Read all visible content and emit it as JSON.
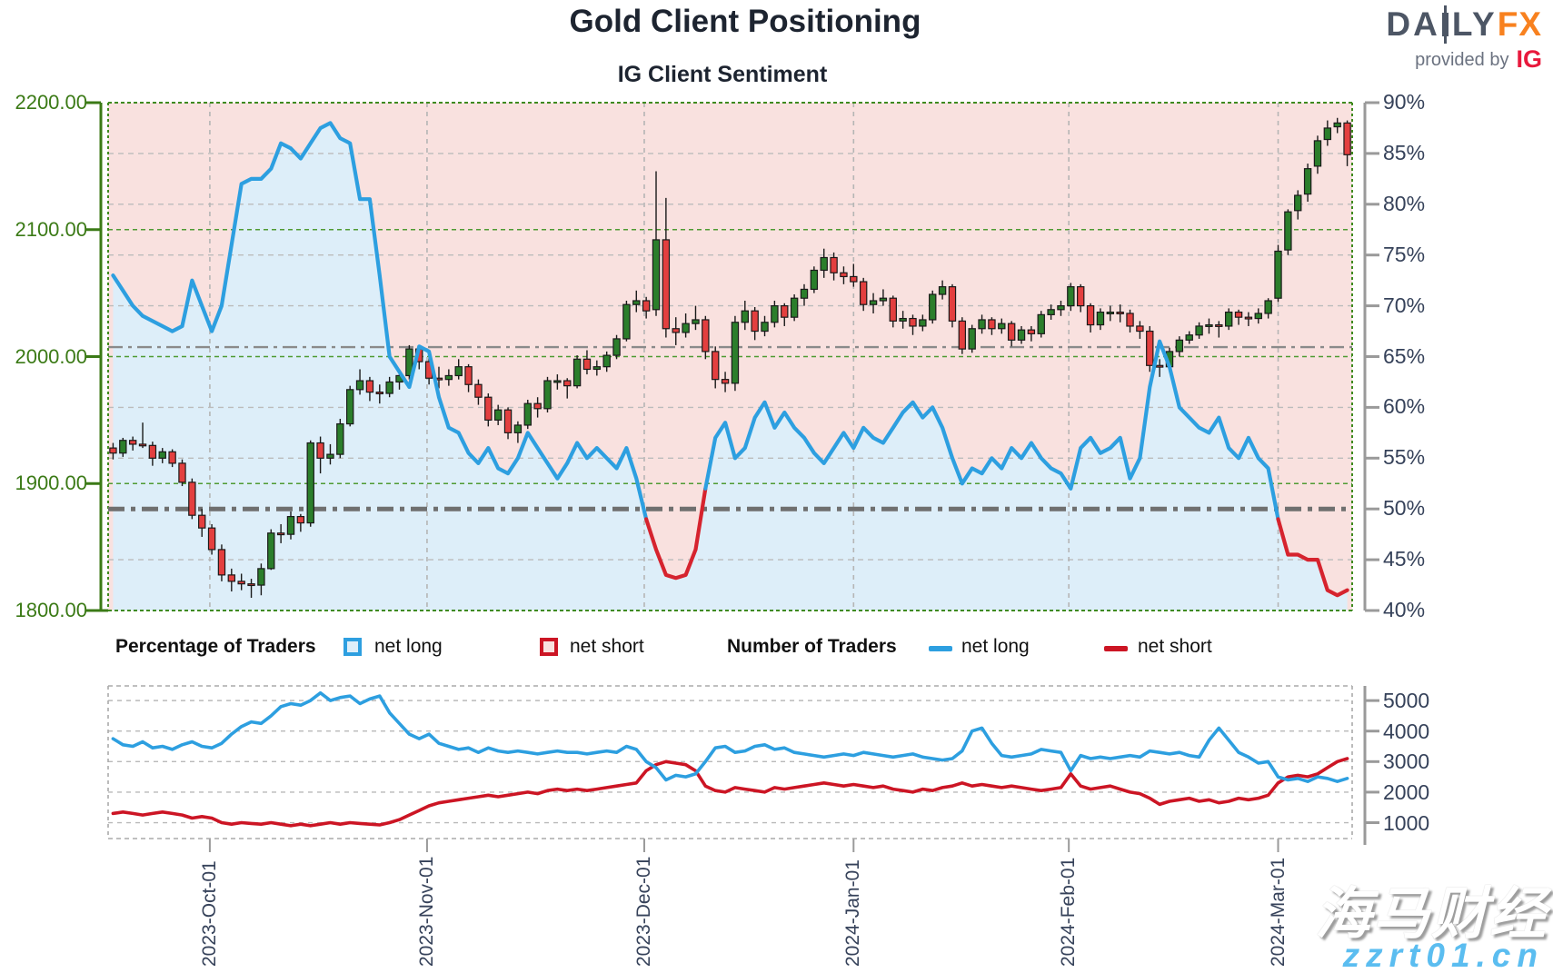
{
  "header": {
    "title": "Gold Client Positioning",
    "subtitle": "IG Client Sentiment",
    "logo": {
      "part1": "DA",
      "part2": "LY",
      "part3": "FX",
      "provided_by": "provided by",
      "ig": "IG"
    }
  },
  "legend": {
    "percentage_title": "Percentage of Traders",
    "pct_net_long": "net long",
    "pct_net_short": "net short",
    "number_title": "Number of Traders",
    "num_net_long": "net long",
    "num_net_short": "net short"
  },
  "watermark": {
    "cjk": "海马财经",
    "url": "zzrt01.cn"
  },
  "chart_data": {
    "type": "candlestick+line",
    "title": "Gold Client Positioning",
    "subtitle": "IG Client Sentiment",
    "price_axis": {
      "min": 1800,
      "max": 2200,
      "ticks": [
        "2200.00",
        "2100.00",
        "2000.00",
        "1900.00",
        "1800.00"
      ],
      "tick_values": [
        2200,
        2100,
        2000,
        1900,
        1800
      ],
      "gridlines": [
        2100,
        2000,
        1900
      ]
    },
    "pct_axis": {
      "min": 40,
      "max": 90,
      "ticks": [
        "90%",
        "85%",
        "80%",
        "75%",
        "70%",
        "65%",
        "60%",
        "55%",
        "50%",
        "45%",
        "40%"
      ],
      "tick_values": [
        90,
        85,
        80,
        75,
        70,
        65,
        60,
        55,
        50,
        45,
        40
      ],
      "gridlines": [
        85,
        80,
        75,
        70,
        60,
        55,
        45
      ]
    },
    "count_axis": {
      "min": 480,
      "max": 5480,
      "ticks": [
        "5000",
        "4000",
        "3000",
        "2000",
        "1000"
      ],
      "tick_values": [
        5000,
        4000,
        3000,
        2000,
        1000
      ]
    },
    "x_axis": {
      "labels": [
        "2023-Oct-01",
        "2023-Nov-01",
        "2023-Dec-01",
        "2024-Jan-01",
        "2024-Feb-01",
        "2024-Mar-01"
      ],
      "index_positions": [
        9.8,
        31.8,
        53.8,
        75.0,
        96.8,
        118.0
      ]
    },
    "markers": {
      "sentiment_mid_pct": 50,
      "price_level": 2007.5
    },
    "candles": [
      [
        1928,
        1932,
        1919,
        1924
      ],
      [
        1924,
        1936,
        1921,
        1934
      ],
      [
        1934,
        1937,
        1926,
        1931
      ],
      [
        1931,
        1948,
        1928,
        1930
      ],
      [
        1930,
        1933,
        1914,
        1920
      ],
      [
        1920,
        1928,
        1916,
        1925
      ],
      [
        1925,
        1927,
        1913,
        1916
      ],
      [
        1916,
        1919,
        1898,
        1901
      ],
      [
        1901,
        1904,
        1872,
        1875
      ],
      [
        1875,
        1880,
        1858,
        1865
      ],
      [
        1865,
        1868,
        1844,
        1848
      ],
      [
        1848,
        1852,
        1823,
        1828
      ],
      [
        1828,
        1833,
        1815,
        1823
      ],
      [
        1823,
        1829,
        1816,
        1821
      ],
      [
        1821,
        1825,
        1810,
        1820
      ],
      [
        1820,
        1837,
        1812,
        1833
      ],
      [
        1833,
        1864,
        1832,
        1861
      ],
      [
        1861,
        1868,
        1853,
        1860
      ],
      [
        1860,
        1878,
        1856,
        1874
      ],
      [
        1874,
        1876,
        1862,
        1869
      ],
      [
        1869,
        1934,
        1866,
        1932
      ],
      [
        1932,
        1937,
        1908,
        1920
      ],
      [
        1920,
        1931,
        1915,
        1923
      ],
      [
        1923,
        1951,
        1920,
        1947
      ],
      [
        1947,
        1977,
        1945,
        1974
      ],
      [
        1974,
        1990,
        1970,
        1981
      ],
      [
        1981,
        1984,
        1965,
        1972
      ],
      [
        1972,
        1978,
        1963,
        1971
      ],
      [
        1971,
        1984,
        1968,
        1980
      ],
      [
        1980,
        1990,
        1974,
        1985
      ],
      [
        1985,
        2009,
        1982,
        2006
      ],
      [
        2006,
        2008,
        1990,
        1996
      ],
      [
        1996,
        1999,
        1978,
        1983
      ],
      [
        1983,
        1992,
        1975,
        1982
      ],
      [
        1982,
        1990,
        1977,
        1985
      ],
      [
        1985,
        1998,
        1982,
        1992
      ],
      [
        1992,
        1994,
        1972,
        1978
      ],
      [
        1978,
        1982,
        1962,
        1968
      ],
      [
        1968,
        1971,
        1945,
        1950
      ],
      [
        1950,
        1962,
        1946,
        1958
      ],
      [
        1958,
        1960,
        1935,
        1940
      ],
      [
        1940,
        1949,
        1932,
        1946
      ],
      [
        1946,
        1966,
        1943,
        1963
      ],
      [
        1963,
        1968,
        1952,
        1959
      ],
      [
        1959,
        1984,
        1956,
        1981
      ],
      [
        1981,
        1986,
        1974,
        1981
      ],
      [
        1981,
        1983,
        1967,
        1977
      ],
      [
        1977,
        2001,
        1975,
        1998
      ],
      [
        1998,
        2005,
        1986,
        1990
      ],
      [
        1990,
        1997,
        1985,
        1992
      ],
      [
        1992,
        2004,
        1988,
        2001
      ],
      [
        2001,
        2017,
        1998,
        2014
      ],
      [
        2014,
        2044,
        2012,
        2041
      ],
      [
        2041,
        2052,
        2035,
        2044
      ],
      [
        2044,
        2047,
        2030,
        2036
      ],
      [
        2037,
        2146,
        2032,
        2092
      ],
      [
        2092,
        2125,
        2015,
        2022
      ],
      [
        2022,
        2031,
        2009,
        2019
      ],
      [
        2019,
        2034,
        2015,
        2026
      ],
      [
        2026,
        2040,
        2021,
        2029
      ],
      [
        2029,
        2032,
        1998,
        2004
      ],
      [
        2004,
        2008,
        1975,
        1982
      ],
      [
        1982,
        1988,
        1972,
        1979
      ],
      [
        1979,
        2032,
        1973,
        2027
      ],
      [
        2027,
        2044,
        2021,
        2036
      ],
      [
        2036,
        2039,
        2013,
        2020
      ],
      [
        2020,
        2032,
        2016,
        2027
      ],
      [
        2027,
        2044,
        2023,
        2040
      ],
      [
        2040,
        2042,
        2024,
        2031
      ],
      [
        2031,
        2049,
        2028,
        2046
      ],
      [
        2046,
        2057,
        2040,
        2053
      ],
      [
        2053,
        2071,
        2050,
        2068
      ],
      [
        2068,
        2085,
        2062,
        2078
      ],
      [
        2078,
        2082,
        2060,
        2066
      ],
      [
        2066,
        2071,
        2057,
        2063
      ],
      [
        2063,
        2073,
        2055,
        2059
      ],
      [
        2059,
        2062,
        2036,
        2041
      ],
      [
        2041,
        2050,
        2034,
        2044
      ],
      [
        2044,
        2053,
        2040,
        2046
      ],
      [
        2046,
        2048,
        2023,
        2028
      ],
      [
        2028,
        2036,
        2022,
        2030
      ],
      [
        2030,
        2033,
        2017,
        2024
      ],
      [
        2024,
        2033,
        2020,
        2029
      ],
      [
        2029,
        2052,
        2026,
        2049
      ],
      [
        2049,
        2060,
        2045,
        2055
      ],
      [
        2055,
        2057,
        2023,
        2028
      ],
      [
        2028,
        2031,
        2002,
        2006
      ],
      [
        2006,
        2025,
        2003,
        2022
      ],
      [
        2022,
        2033,
        2018,
        2029
      ],
      [
        2029,
        2031,
        2017,
        2022
      ],
      [
        2022,
        2030,
        2018,
        2026
      ],
      [
        2026,
        2028,
        2008,
        2013
      ],
      [
        2013,
        2024,
        2010,
        2021
      ],
      [
        2021,
        2024,
        2012,
        2018
      ],
      [
        2018,
        2036,
        2015,
        2033
      ],
      [
        2033,
        2041,
        2029,
        2037
      ],
      [
        2037,
        2044,
        2032,
        2040
      ],
      [
        2040,
        2058,
        2036,
        2055
      ],
      [
        2055,
        2057,
        2035,
        2040
      ],
      [
        2040,
        2042,
        2019,
        2025
      ],
      [
        2025,
        2038,
        2021,
        2035
      ],
      [
        2035,
        2040,
        2028,
        2035
      ],
      [
        2035,
        2041,
        2027,
        2034
      ],
      [
        2034,
        2037,
        2019,
        2024
      ],
      [
        2024,
        2028,
        2014,
        2020
      ],
      [
        2020,
        2024,
        1988,
        1993
      ],
      [
        1993,
        1998,
        1984,
        1992
      ],
      [
        1992,
        2007,
        1988,
        2004
      ],
      [
        2004,
        2016,
        2000,
        2013
      ],
      [
        2013,
        2020,
        2010,
        2017
      ],
      [
        2017,
        2027,
        2014,
        2024
      ],
      [
        2024,
        2030,
        2018,
        2025
      ],
      [
        2025,
        2028,
        2015,
        2024
      ],
      [
        2024,
        2038,
        2021,
        2035
      ],
      [
        2035,
        2037,
        2025,
        2031
      ],
      [
        2031,
        2035,
        2024,
        2030
      ],
      [
        2030,
        2038,
        2026,
        2034
      ],
      [
        2034,
        2046,
        2030,
        2044
      ],
      [
        2046,
        2088,
        2043,
        2083
      ],
      [
        2084,
        2116,
        2080,
        2114
      ],
      [
        2115,
        2131,
        2108,
        2127
      ],
      [
        2128,
        2152,
        2122,
        2148
      ],
      [
        2150,
        2174,
        2144,
        2170
      ],
      [
        2171,
        2186,
        2166,
        2180
      ],
      [
        2181,
        2188,
        2176,
        2184
      ],
      [
        2184,
        2186,
        2150,
        2159
      ]
    ],
    "sentiment_pct": [
      73,
      71.5,
      70,
      69,
      68.5,
      68,
      67.5,
      68,
      72.5,
      70,
      67.5,
      70,
      76,
      82,
      82.5,
      82.5,
      83.5,
      86,
      85.5,
      84.5,
      86,
      87.5,
      88,
      86.5,
      86,
      80.5,
      80.5,
      73,
      65,
      63.5,
      62,
      66,
      65.5,
      61,
      58,
      57.5,
      55.5,
      54.5,
      56,
      54,
      53.5,
      55,
      57.5,
      56,
      54.5,
      53,
      54.5,
      56.5,
      55,
      56,
      55,
      54,
      56,
      53,
      49,
      46,
      43.5,
      43.2,
      43.5,
      46,
      52,
      57,
      58.5,
      55,
      56,
      59,
      60.5,
      58,
      59.5,
      58,
      57,
      55.5,
      54.5,
      56,
      57.5,
      56,
      58,
      57,
      56.5,
      58,
      59.5,
      60.5,
      59,
      60,
      58,
      55,
      52.5,
      54,
      53.5,
      55,
      54,
      56,
      55,
      56.5,
      55,
      54,
      53.5,
      52,
      56,
      57,
      55.5,
      56,
      57,
      53,
      55,
      62,
      66.5,
      64,
      60,
      59,
      58,
      57.5,
      59,
      56,
      55,
      57,
      55,
      54,
      49,
      45.5,
      45.5,
      45,
      45,
      42,
      41.5,
      42
    ],
    "traders_long": [
      3750,
      3550,
      3500,
      3650,
      3450,
      3500,
      3400,
      3550,
      3650,
      3500,
      3450,
      3600,
      3900,
      4150,
      4300,
      4250,
      4500,
      4800,
      4900,
      4850,
      5000,
      5250,
      5000,
      5100,
      5150,
      4900,
      5050,
      5150,
      4600,
      4250,
      3900,
      3750,
      3900,
      3600,
      3500,
      3400,
      3450,
      3300,
      3450,
      3350,
      3300,
      3350,
      3300,
      3250,
      3300,
      3350,
      3300,
      3300,
      3250,
      3300,
      3350,
      3300,
      3500,
      3400,
      3000,
      2800,
      2400,
      2550,
      2500,
      2600,
      3000,
      3450,
      3500,
      3300,
      3350,
      3500,
      3550,
      3400,
      3450,
      3300,
      3250,
      3200,
      3150,
      3200,
      3250,
      3200,
      3300,
      3250,
      3200,
      3150,
      3200,
      3250,
      3150,
      3100,
      3050,
      3100,
      3350,
      4000,
      4100,
      3600,
      3200,
      3150,
      3200,
      3250,
      3400,
      3350,
      3300,
      2700,
      3200,
      3100,
      3150,
      3100,
      3150,
      3200,
      3150,
      3350,
      3300,
      3250,
      3300,
      3200,
      3150,
      3700,
      4100,
      3700,
      3300,
      3150,
      2950,
      3000,
      2500,
      2400,
      2450,
      2350,
      2500,
      2450,
      2350,
      2450
    ],
    "traders_short": [
      1300,
      1350,
      1300,
      1250,
      1300,
      1350,
      1300,
      1250,
      1150,
      1200,
      1150,
      1000,
      950,
      1000,
      975,
      950,
      1000,
      950,
      900,
      950,
      900,
      950,
      1000,
      950,
      1000,
      975,
      950,
      925,
      1000,
      1100,
      1250,
      1400,
      1550,
      1650,
      1700,
      1750,
      1800,
      1850,
      1900,
      1850,
      1900,
      1950,
      2000,
      1950,
      2050,
      2100,
      2050,
      2100,
      2050,
      2100,
      2150,
      2200,
      2250,
      2300,
      2700,
      2900,
      3000,
      2950,
      2900,
      2700,
      2200,
      2050,
      2000,
      2150,
      2100,
      2050,
      2000,
      2150,
      2100,
      2150,
      2200,
      2250,
      2300,
      2250,
      2200,
      2250,
      2200,
      2150,
      2200,
      2100,
      2050,
      2000,
      2100,
      2050,
      2150,
      2200,
      2300,
      2200,
      2250,
      2200,
      2150,
      2200,
      2150,
      2100,
      2050,
      2100,
      2150,
      2600,
      2200,
      2100,
      2150,
      2200,
      2100,
      2000,
      1950,
      1800,
      1600,
      1700,
      1750,
      1800,
      1700,
      1750,
      1650,
      1700,
      1800,
      1750,
      1800,
      1900,
      2300,
      2500,
      2550,
      2500,
      2600,
      2800,
      3000,
      3100
    ],
    "colors": {
      "candle_up": "#2b7e2b",
      "candle_down": "#e33f3f",
      "candle_stroke": "#1a1a1a",
      "sentiment_long_line": "#2d9fe0",
      "sentiment_long_fill": "#ddeef9",
      "sentiment_short_line": "#d6232e",
      "bg_pink": "#f9e1df",
      "price_axis_green": "#3b7a16",
      "navy_text": "#36425a",
      "grid_gray": "#bcbcbc",
      "axis_gray": "#9a9a9a",
      "marker_gray": "#6f6f6f",
      "num_long": "#2d9fe0",
      "num_short": "#cc1524"
    },
    "legend_position": "between charts",
    "grid": true
  }
}
